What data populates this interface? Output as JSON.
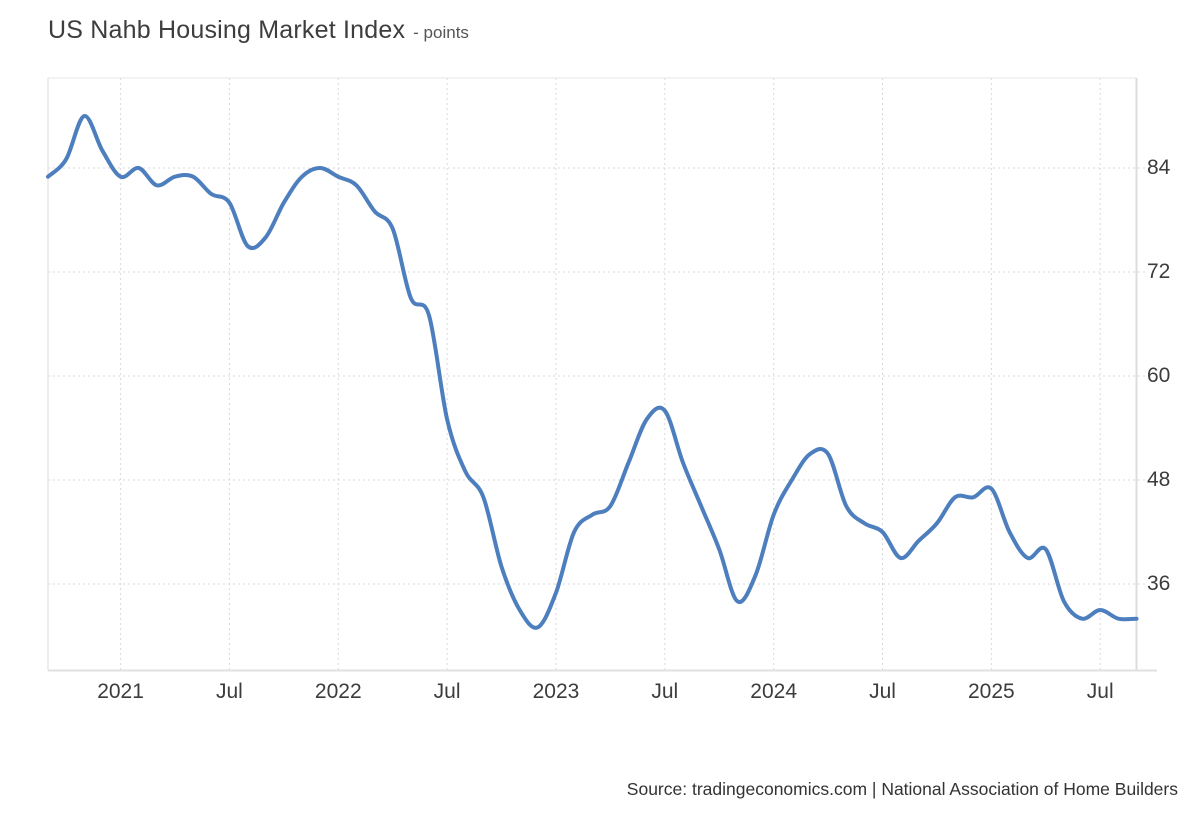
{
  "header": {
    "title": "US Nahb Housing Market Index",
    "subtitle": "- points"
  },
  "footer": {
    "source_text": "Source: tradingeconomics.com | National Association of Home Builders"
  },
  "colors": {
    "line": "#4d7ebd",
    "grid": "#d9d9d9",
    "plot_border": "#e7e7e7",
    "axis_line": "#dcdcdc",
    "tick_text": "#3c3c3c",
    "background": "#ffffff"
  },
  "chart_data": {
    "type": "line",
    "title": "US Nahb Housing Market Index",
    "unit": "points",
    "series_name": "NAHB Housing Market Index",
    "frequency": "monthly",
    "x_start": "2020-09",
    "x_end": "2025-09",
    "values": [
      83,
      85,
      90,
      86,
      83,
      84,
      82,
      83,
      83,
      81,
      80,
      75,
      76,
      80,
      83,
      84,
      83,
      82,
      79,
      77,
      69,
      67,
      55,
      49,
      46,
      38,
      33,
      31,
      35,
      42,
      44,
      45,
      50,
      55,
      56,
      50,
      45,
      40,
      34,
      37,
      44,
      48,
      51,
      51,
      45,
      43,
      42,
      39,
      41,
      43,
      46,
      46,
      47,
      42,
      39,
      40,
      34,
      32,
      33,
      32,
      32
    ],
    "x_tick_labels": [
      "2021",
      "Jul",
      "2022",
      "Jul",
      "2023",
      "Jul",
      "2024",
      "Jul",
      "2025",
      "Jul"
    ],
    "x_tick_month_indices": [
      4,
      10,
      16,
      22,
      28,
      34,
      40,
      46,
      52,
      58
    ],
    "y_ticks": [
      84,
      72,
      60,
      48,
      36
    ],
    "ylim": [
      26,
      94
    ],
    "grid": "dotted",
    "legend": "none",
    "smoothing": "spline"
  }
}
